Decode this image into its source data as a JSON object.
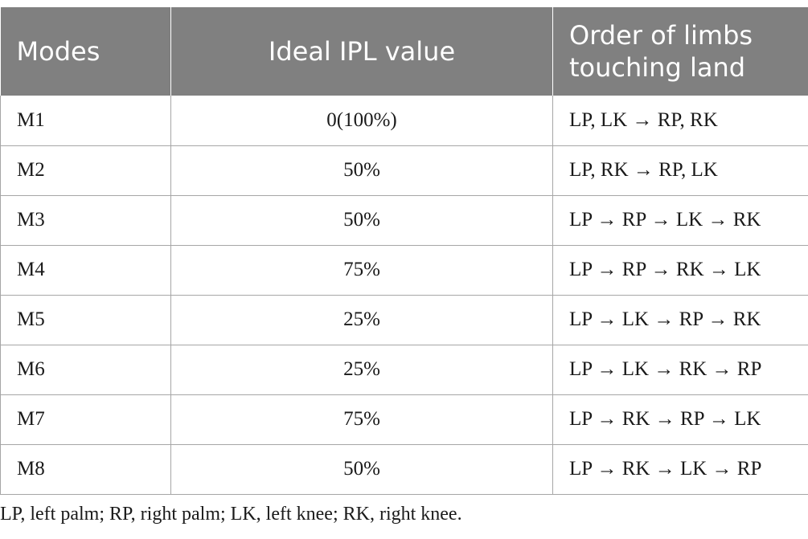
{
  "table": {
    "headers": [
      "Modes",
      "Ideal IPL value",
      "Order of limbs touching land"
    ],
    "rows": [
      {
        "mode": "M1",
        "ipl": "0(100%)",
        "order": "LP, LK → RP, RK"
      },
      {
        "mode": "M2",
        "ipl": "50%",
        "order": "LP, RK → RP, LK"
      },
      {
        "mode": "M3",
        "ipl": "50%",
        "order": "LP → RP → LK → RK"
      },
      {
        "mode": "M4",
        "ipl": "75%",
        "order": "LP → RP → RK → LK"
      },
      {
        "mode": "M5",
        "ipl": "25%",
        "order": "LP → LK → RP → RK"
      },
      {
        "mode": "M6",
        "ipl": "25%",
        "order": "LP → LK → RK → RP"
      },
      {
        "mode": "M7",
        "ipl": "75%",
        "order": "LP → RK → RP → LK"
      },
      {
        "mode": "M8",
        "ipl": "50%",
        "order": "LP → RK → LK → RP"
      }
    ]
  },
  "footnote": "LP, left palm; RP, right palm; LK, left knee; RK, right knee.",
  "colors": {
    "header_bg": "#808080",
    "header_text": "#ffffff",
    "border": "#a6a6a6"
  }
}
